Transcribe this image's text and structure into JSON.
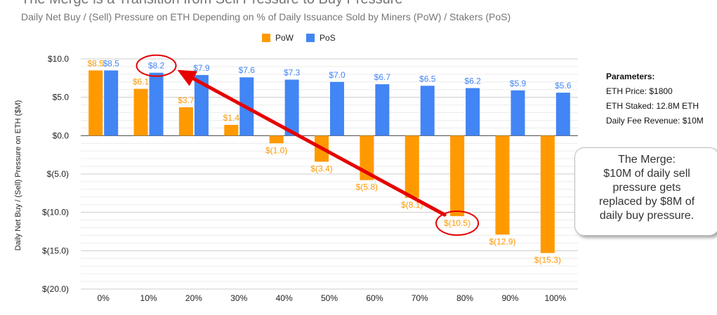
{
  "chart_data": {
    "type": "bar",
    "title": "The Merge is a Transition from Sell Pressure to Buy Pressure",
    "subtitle": "Daily Net Buy / (Sell) Pressure on ETH Depending on % of Daily Issuance Sold by Miners (PoW) / Stakers (PoS)",
    "ylabel": "Daily Net Buy / (Sell) Pressure on ETH ($M)",
    "xlabel": "",
    "ylim": [
      -20,
      10
    ],
    "yticks": [
      10,
      5,
      0,
      -5,
      -10,
      -15,
      -20
    ],
    "ytick_labels": [
      "$10.0",
      "$5.0",
      "$0.0",
      "$(5.0)",
      "$(10.0)",
      "$(15.0)",
      "$(20.0)"
    ],
    "grid": true,
    "legend_position": "top-center",
    "categories": [
      "0%",
      "10%",
      "20%",
      "30%",
      "40%",
      "50%",
      "60%",
      "70%",
      "80%",
      "90%",
      "100%"
    ],
    "series": [
      {
        "name": "PoW",
        "color": "#ff9900",
        "values": [
          8.5,
          6.1,
          3.7,
          1.4,
          -1.0,
          -3.4,
          -5.8,
          -8.1,
          -10.5,
          -12.9,
          -15.3
        ],
        "labels": [
          "$8.5",
          "$6.1",
          "$3.7",
          "$1.4",
          "$(1.0)",
          "$(3.4)",
          "$(5.8)",
          "$(8.1)",
          "$(10.5)",
          "$(12.9)",
          "$(15.3)"
        ]
      },
      {
        "name": "PoS",
        "color": "#4285f4",
        "values": [
          8.5,
          8.2,
          7.9,
          7.6,
          7.3,
          7.0,
          6.7,
          6.5,
          6.2,
          5.9,
          5.6
        ],
        "labels": [
          "$8.5",
          "$8.2",
          "$7.9",
          "$7.6",
          "$7.3",
          "$7.0",
          "$6.7",
          "$6.5",
          "$6.2",
          "$5.9",
          "$5.6"
        ]
      }
    ],
    "annotations": {
      "parameters_title": "Parameters:",
      "parameters": [
        "ETH Price: $1800",
        "ETH Staked: 12.8M ETH",
        "Daily Fee Revenue: $10M"
      ],
      "callout_lines": [
        "The Merge:",
        "$10M of daily sell",
        "pressure gets",
        "replaced by $8M of",
        "daily buy pressure."
      ],
      "highlight_color": "#e60000"
    }
  }
}
